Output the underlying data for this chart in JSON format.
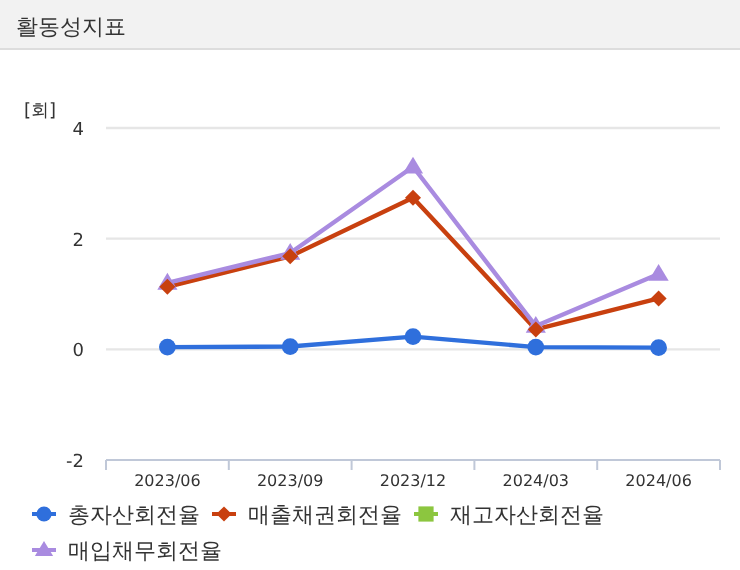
{
  "chart_data": {
    "type": "line",
    "title": "활동성지표",
    "ylabel": "[회]",
    "categories": [
      "2023/06",
      "2023/09",
      "2023/12",
      "2024/03",
      "2024/06"
    ],
    "ylim": [
      -2,
      4
    ],
    "yticks": [
      -2,
      0,
      2,
      4
    ],
    "grid": "y",
    "legend": "bottom",
    "series": [
      {
        "name": "총자산회전율",
        "color": "#2f6fdc",
        "marker": "circle",
        "values": [
          0.04,
          0.05,
          0.23,
          0.04,
          0.03
        ]
      },
      {
        "name": "매출채권회전율",
        "color": "#c8400f",
        "marker": "diamond",
        "values": [
          1.13,
          1.68,
          2.74,
          0.36,
          0.92
        ]
      },
      {
        "name": "재고자산회전율",
        "color": "#8cc63f",
        "marker": "square",
        "values": [
          null,
          null,
          null,
          null,
          null
        ]
      },
      {
        "name": "매입채무회전율",
        "color": "#a98be0",
        "marker": "triangle",
        "values": [
          1.2,
          1.74,
          3.3,
          0.42,
          1.36
        ]
      }
    ]
  }
}
